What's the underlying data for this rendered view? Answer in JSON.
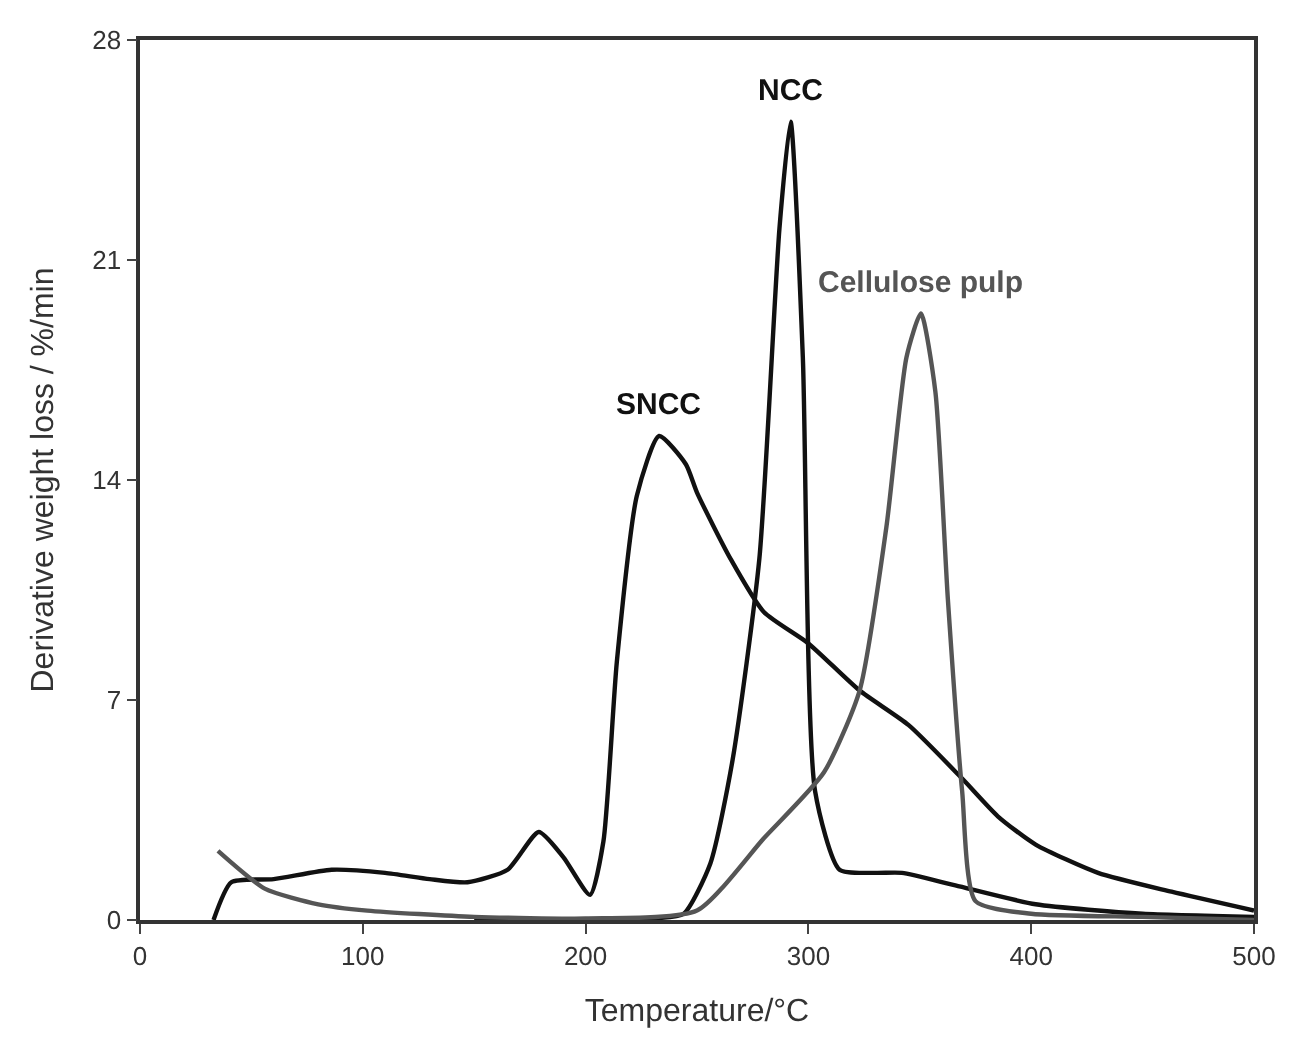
{
  "chart_data": {
    "type": "line",
    "xlabel": "Temperature/°C",
    "ylabel": "Derivative weight loss / %/min",
    "xlim": [
      0,
      500
    ],
    "ylim": [
      0,
      28
    ],
    "xticks": [
      0,
      100,
      200,
      300,
      400,
      500
    ],
    "yticks": [
      0,
      7,
      14,
      21,
      28
    ],
    "grid": false,
    "legend": false,
    "marker": "none",
    "line_style": "solid",
    "series": [
      {
        "name": "SNCC",
        "color": "#111111",
        "x": [
          33,
          41,
          60,
          86,
          110,
          130,
          147,
          165,
          179,
          190,
          202,
          208,
          214,
          223,
          233,
          245,
          250,
          265,
          280,
          300,
          323,
          345,
          369,
          385,
          402,
          430,
          463,
          500
        ],
        "values": [
          0,
          1.2,
          1.3,
          1.6,
          1.5,
          1.3,
          1.2,
          1.6,
          2.8,
          2.0,
          0.8,
          2.5,
          8.2,
          13.5,
          15.4,
          14.5,
          13.6,
          11.5,
          9.8,
          8.8,
          7.3,
          6.2,
          4.5,
          3.3,
          2.4,
          1.5,
          0.9,
          0.3
        ]
      },
      {
        "name": "NCC",
        "color": "#111111",
        "x": [
          150,
          230,
          244,
          256,
          266,
          278,
          287,
          292,
          297.5,
          303,
          314,
          330,
          342,
          366,
          402,
          450,
          500
        ],
        "values": [
          0,
          0.05,
          0.2,
          1.8,
          5.1,
          11.5,
          22,
          25.4,
          17.9,
          4.1,
          1.6,
          1.5,
          1.5,
          1.1,
          0.5,
          0.2,
          0.1
        ]
      },
      {
        "name": "Cellulose pulp",
        "color": "#555555",
        "x": [
          35,
          56,
          80,
          102,
          150,
          200,
          250,
          280,
          307,
          323,
          335,
          344,
          350.5,
          357,
          362.6,
          369,
          375,
          400,
          450,
          500
        ],
        "values": [
          2.2,
          1.0,
          0.5,
          0.3,
          0.1,
          0.05,
          0.3,
          2.6,
          4.7,
          7.3,
          12.5,
          17.9,
          19.3,
          16.8,
          10.2,
          4.1,
          0.6,
          0.2,
          0.1,
          0
        ]
      }
    ]
  }
}
